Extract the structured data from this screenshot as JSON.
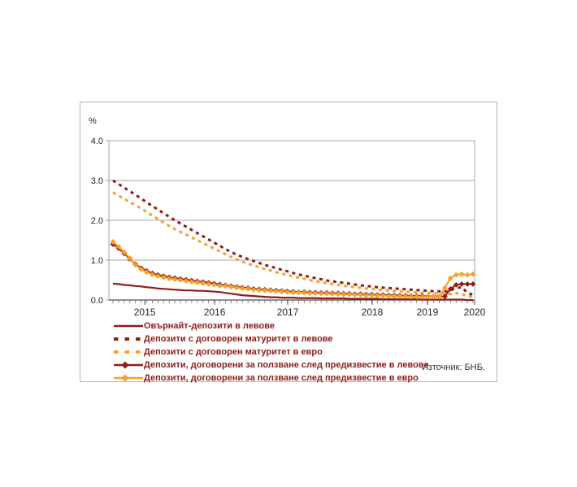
{
  "chart_data": {
    "type": "line",
    "title": "",
    "ylabel": "%",
    "source": "Източник: БНБ.",
    "ylim": [
      0.0,
      4.0
    ],
    "yticks": [
      "4.0",
      "3.0",
      "2.0",
      "1.0",
      "0.0"
    ],
    "grid": "horizontal",
    "legend_position": "bottom-left",
    "x_frequency": "monthly",
    "x_range": [
      "2014-10",
      "2020-02"
    ],
    "xticks": [
      {
        "label": "2015",
        "f": 0.098
      },
      {
        "label": "2016",
        "f": 0.289
      },
      {
        "label": "2017",
        "f": 0.489
      },
      {
        "label": "2018",
        "f": 0.72
      },
      {
        "label": "2019",
        "f": 0.871
      },
      {
        "label": "2020",
        "f": 1.0
      }
    ],
    "colors": {
      "dark_red": "#8e1c18",
      "orange": "#f5a02f",
      "grid": "#a3a3a3",
      "axis": "#4d4d4d",
      "text": "#262626"
    },
    "series": [
      {
        "name": "Овърнайт-депозити в левове",
        "color": "#8e1c18",
        "style": "solid",
        "marker": "none",
        "values": [
          0.41,
          0.4,
          0.38,
          0.37,
          0.35,
          0.34,
          0.32,
          0.31,
          0.29,
          0.28,
          0.27,
          0.26,
          0.25,
          0.24,
          0.24,
          0.23,
          0.23,
          0.22,
          0.21,
          0.2,
          0.18,
          0.16,
          0.14,
          0.12,
          0.11,
          0.1,
          0.09,
          0.08,
          0.07,
          0.07,
          0.06,
          0.06,
          0.06,
          0.05,
          0.05,
          0.05,
          0.05,
          0.04,
          0.04,
          0.04,
          0.04,
          0.04,
          0.03,
          0.03,
          0.03,
          0.03,
          0.03,
          0.03,
          0.02,
          0.02,
          0.02,
          0.02,
          0.02,
          0.02,
          0.02,
          0.01,
          0.01,
          0.01,
          0.01,
          0.01,
          0.01,
          0.01,
          0.01,
          0.0,
          0.0
        ]
      },
      {
        "name": "Депозити с договорен матуритет в левове",
        "color": "#8e1c18",
        "style": "dashed",
        "marker": "none",
        "values": [
          3.0,
          2.91,
          2.82,
          2.73,
          2.64,
          2.55,
          2.45,
          2.36,
          2.27,
          2.18,
          2.09,
          2.0,
          1.92,
          1.84,
          1.76,
          1.68,
          1.6,
          1.52,
          1.44,
          1.36,
          1.28,
          1.2,
          1.14,
          1.08,
          1.03,
          0.98,
          0.93,
          0.88,
          0.84,
          0.8,
          0.76,
          0.72,
          0.68,
          0.64,
          0.61,
          0.58,
          0.55,
          0.52,
          0.49,
          0.47,
          0.45,
          0.43,
          0.41,
          0.39,
          0.37,
          0.35,
          0.34,
          0.32,
          0.31,
          0.3,
          0.29,
          0.28,
          0.27,
          0.26,
          0.25,
          0.24,
          0.23,
          0.22,
          0.22,
          0.21,
          0.24,
          0.3,
          0.32,
          0.18,
          0.13
        ]
      },
      {
        "name": "Депозити с договорен матуритет в евро",
        "color": "#f5a02f",
        "style": "dashed",
        "marker": "none",
        "values": [
          2.7,
          2.62,
          2.54,
          2.46,
          2.38,
          2.3,
          2.21,
          2.12,
          2.03,
          1.94,
          1.86,
          1.78,
          1.71,
          1.64,
          1.57,
          1.5,
          1.43,
          1.36,
          1.29,
          1.22,
          1.15,
          1.08,
          1.02,
          0.96,
          0.91,
          0.87,
          0.82,
          0.78,
          0.74,
          0.7,
          0.66,
          0.63,
          0.59,
          0.56,
          0.53,
          0.5,
          0.47,
          0.45,
          0.42,
          0.4,
          0.38,
          0.36,
          0.34,
          0.32,
          0.31,
          0.29,
          0.28,
          0.26,
          0.25,
          0.24,
          0.23,
          0.22,
          0.21,
          0.2,
          0.19,
          0.18,
          0.18,
          0.17,
          0.17,
          0.16,
          0.15,
          0.17,
          0.15,
          0.1,
          0.08
        ]
      },
      {
        "name": "Депозити, договорени за ползване след предизвестие в левове",
        "color": "#8e1c18",
        "style": "solid",
        "marker": "diamond",
        "values": [
          1.4,
          1.3,
          1.17,
          1.03,
          0.9,
          0.8,
          0.73,
          0.67,
          0.63,
          0.6,
          0.57,
          0.55,
          0.53,
          0.51,
          0.49,
          0.47,
          0.45,
          0.43,
          0.41,
          0.39,
          0.37,
          0.35,
          0.33,
          0.31,
          0.3,
          0.28,
          0.27,
          0.26,
          0.25,
          0.24,
          0.23,
          0.22,
          0.21,
          0.2,
          0.2,
          0.19,
          0.19,
          0.18,
          0.18,
          0.17,
          0.17,
          0.16,
          0.16,
          0.15,
          0.15,
          0.14,
          0.14,
          0.13,
          0.13,
          0.12,
          0.12,
          0.11,
          0.11,
          0.1,
          0.1,
          0.1,
          0.09,
          0.09,
          0.09,
          0.09,
          0.28,
          0.38,
          0.4,
          0.4,
          0.4
        ]
      },
      {
        "name": "Депозити, договорени за ползване след предизвестие в евро",
        "color": "#f5a02f",
        "style": "solid",
        "marker": "diamond",
        "values": [
          1.46,
          1.34,
          1.2,
          1.05,
          0.88,
          0.77,
          0.7,
          0.64,
          0.6,
          0.57,
          0.54,
          0.52,
          0.5,
          0.48,
          0.46,
          0.44,
          0.42,
          0.4,
          0.38,
          0.36,
          0.35,
          0.33,
          0.31,
          0.29,
          0.28,
          0.26,
          0.25,
          0.24,
          0.23,
          0.22,
          0.21,
          0.2,
          0.19,
          0.19,
          0.18,
          0.17,
          0.17,
          0.16,
          0.16,
          0.15,
          0.15,
          0.14,
          0.14,
          0.13,
          0.13,
          0.12,
          0.12,
          0.11,
          0.11,
          0.1,
          0.1,
          0.09,
          0.09,
          0.08,
          0.08,
          0.08,
          0.08,
          0.08,
          0.08,
          0.3,
          0.55,
          0.63,
          0.65,
          0.63,
          0.65
        ]
      }
    ]
  }
}
